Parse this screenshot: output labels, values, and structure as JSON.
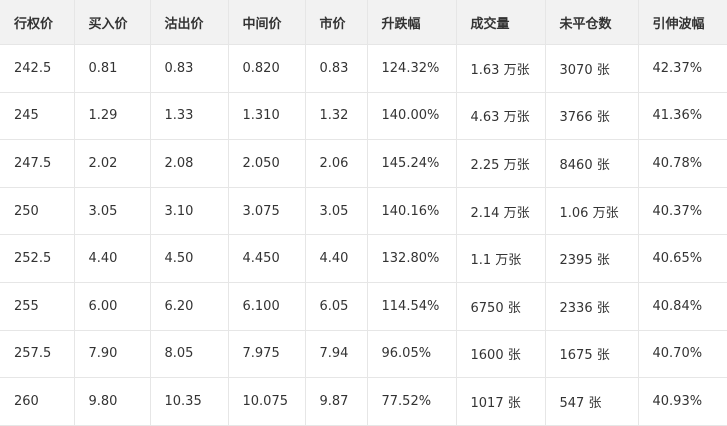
{
  "table": {
    "headers": [
      "行权价",
      "买入价",
      "沽出价",
      "中间价",
      "市价",
      "升跌幅",
      "成交量",
      "未平仓数",
      "引伸波幅"
    ],
    "rows": [
      [
        "242.5",
        "0.81",
        "0.83",
        "0.820",
        "0.83",
        "124.32%",
        "1.63 万张",
        "3070 张",
        "42.37%"
      ],
      [
        "245",
        "1.29",
        "1.33",
        "1.310",
        "1.32",
        "140.00%",
        "4.63 万张",
        "3766 张",
        "41.36%"
      ],
      [
        "247.5",
        "2.02",
        "2.08",
        "2.050",
        "2.06",
        "145.24%",
        "2.25 万张",
        "8460 张",
        "40.78%"
      ],
      [
        "250",
        "3.05",
        "3.10",
        "3.075",
        "3.05",
        "140.16%",
        "2.14 万张",
        "1.06 万张",
        "40.37%"
      ],
      [
        "252.5",
        "4.40",
        "4.50",
        "4.450",
        "4.40",
        "132.80%",
        "1.1 万张",
        "2395 张",
        "40.65%"
      ],
      [
        "255",
        "6.00",
        "6.20",
        "6.100",
        "6.05",
        "114.54%",
        "6750 张",
        "2336 张",
        "40.84%"
      ],
      [
        "257.5",
        "7.90",
        "8.05",
        "7.975",
        "7.94",
        "96.05%",
        "1600 张",
        "1675 张",
        "40.70%"
      ],
      [
        "260",
        "9.80",
        "10.35",
        "10.075",
        "9.87",
        "77.52%",
        "1017 张",
        "547 张",
        "40.93%"
      ]
    ]
  }
}
